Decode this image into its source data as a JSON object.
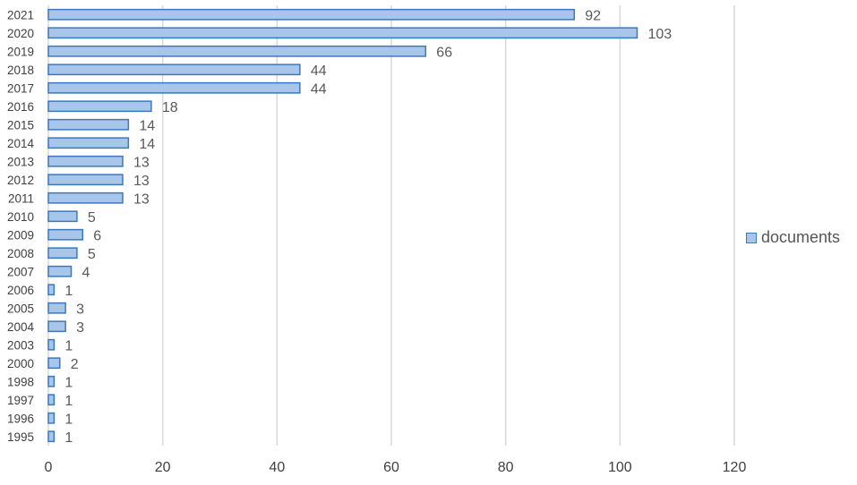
{
  "chart_data": {
    "type": "bar",
    "orientation": "horizontal",
    "categories": [
      "2021",
      "2020",
      "2019",
      "2018",
      "2017",
      "2016",
      "2015",
      "2014",
      "2013",
      "2012",
      "2011",
      "2010",
      "2009",
      "2008",
      "2007",
      "2006",
      "2005",
      "2004",
      "2003",
      "2000",
      "1998",
      "1997",
      "1996",
      "1995"
    ],
    "series": [
      {
        "name": "documents",
        "values": [
          92,
          103,
          66,
          44,
          44,
          18,
          14,
          14,
          13,
          13,
          13,
          5,
          6,
          5,
          4,
          1,
          3,
          3,
          1,
          2,
          1,
          1,
          1,
          1
        ]
      }
    ],
    "xlim": [
      0,
      120
    ],
    "xticks": [
      0,
      20,
      40,
      60,
      80,
      100,
      120
    ],
    "grid": "vertical",
    "legend_position": "right",
    "data_labels": true,
    "colors": {
      "bar_fill": "#a8c6ea",
      "bar_stroke": "#3a78c2",
      "grid": "#d9d9d9",
      "text": "#404040",
      "value_text": "#595959"
    }
  }
}
